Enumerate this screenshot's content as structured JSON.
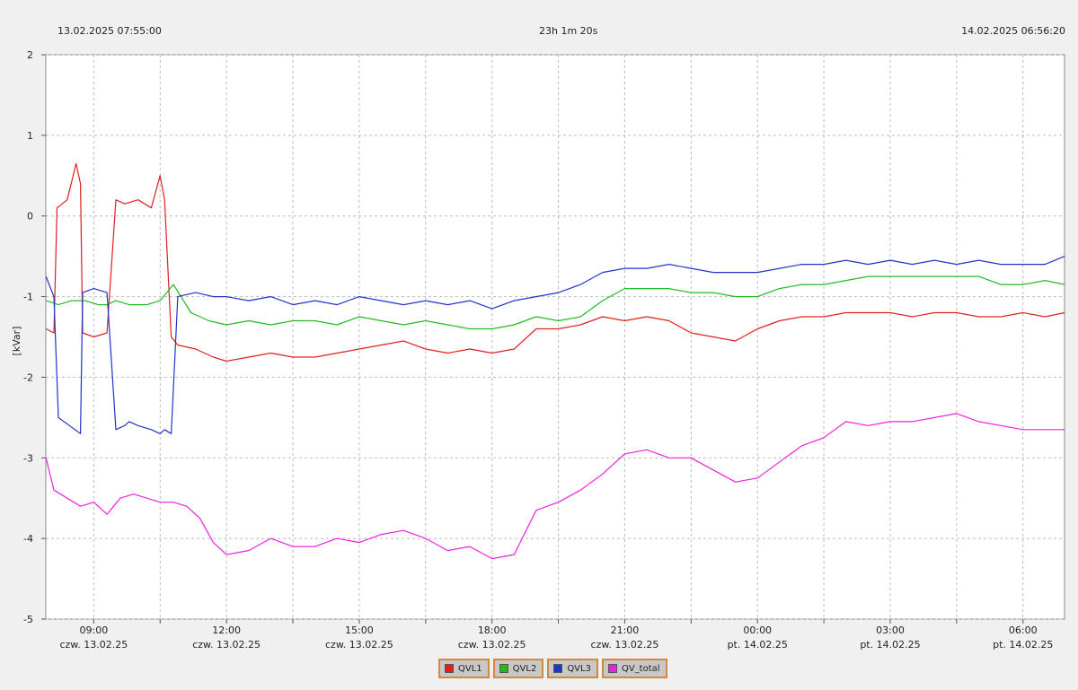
{
  "header": {
    "start_time": "13.02.2025 07:55:00",
    "duration": "23h 1m 20s",
    "end_time": "14.02.2025 06:56:20"
  },
  "chart_data": {
    "type": "line",
    "ylabel": "[kVar]",
    "ylim": [
      -5,
      2
    ],
    "xlim": [
      7.9167,
      30.9389
    ],
    "x_unit": "hours from 00:00 on 13.02.2025",
    "grid": true,
    "yticks": [
      "2",
      "1",
      "0",
      "-1",
      "-2",
      "-3",
      "-4",
      "-5"
    ],
    "xticks": [
      {
        "time": "09:00",
        "date": "czw. 13.02.25",
        "hour": 9
      },
      {
        "time": "12:00",
        "date": "czw. 13.02.25",
        "hour": 12
      },
      {
        "time": "15:00",
        "date": "czw. 13.02.25",
        "hour": 15
      },
      {
        "time": "18:00",
        "date": "czw. 13.02.25",
        "hour": 18
      },
      {
        "time": "21:00",
        "date": "czw. 13.02.25",
        "hour": 21
      },
      {
        "time": "00:00",
        "date": "pt. 14.02.25",
        "hour": 24
      },
      {
        "time": "03:00",
        "date": "pt. 14.02.25",
        "hour": 27
      },
      {
        "time": "06:00",
        "date": "pt. 14.02.25",
        "hour": 30
      }
    ],
    "legend_position": "bottom-center",
    "series": [
      {
        "name": "QVL1",
        "color": "#e02020",
        "x": [
          7.92,
          8.1,
          8.17,
          8.4,
          8.6,
          8.7,
          8.75,
          9.0,
          9.3,
          9.5,
          9.7,
          10.0,
          10.3,
          10.5,
          10.6,
          10.75,
          10.9,
          11.3,
          11.7,
          12.0,
          12.5,
          13.0,
          13.5,
          14.0,
          14.5,
          15.0,
          15.5,
          16.0,
          16.5,
          17.0,
          17.5,
          18.0,
          18.5,
          19.0,
          19.5,
          20.0,
          20.5,
          21.0,
          21.5,
          22.0,
          22.5,
          23.0,
          23.5,
          24.0,
          24.5,
          25.0,
          25.5,
          26.0,
          26.5,
          27.0,
          27.5,
          28.0,
          28.5,
          29.0,
          29.5,
          30.0,
          30.5,
          30.94
        ],
        "y": [
          -1.4,
          -1.45,
          0.1,
          0.2,
          0.65,
          0.4,
          -1.45,
          -1.5,
          -1.45,
          0.2,
          0.15,
          0.2,
          0.1,
          0.5,
          0.2,
          -1.5,
          -1.6,
          -1.65,
          -1.75,
          -1.8,
          -1.75,
          -1.7,
          -1.75,
          -1.75,
          -1.7,
          -1.65,
          -1.6,
          -1.55,
          -1.65,
          -1.7,
          -1.65,
          -1.7,
          -1.65,
          -1.4,
          -1.4,
          -1.35,
          -1.25,
          -1.3,
          -1.25,
          -1.3,
          -1.45,
          -1.5,
          -1.55,
          -1.4,
          -1.3,
          -1.25,
          -1.25,
          -1.2,
          -1.2,
          -1.2,
          -1.25,
          -1.2,
          -1.2,
          -1.25,
          -1.25,
          -1.2,
          -1.25,
          -1.2
        ]
      },
      {
        "name": "QVL2",
        "color": "#22bb22",
        "x": [
          7.92,
          8.2,
          8.5,
          8.8,
          9.1,
          9.3,
          9.5,
          9.8,
          10.2,
          10.5,
          10.8,
          11.2,
          11.6,
          12.0,
          12.5,
          13.0,
          13.5,
          14.0,
          14.5,
          15.0,
          15.5,
          16.0,
          16.5,
          17.0,
          17.5,
          18.0,
          18.5,
          19.0,
          19.5,
          20.0,
          20.5,
          21.0,
          21.5,
          22.0,
          22.5,
          23.0,
          23.5,
          24.0,
          24.5,
          25.0,
          25.5,
          26.0,
          26.5,
          27.0,
          27.5,
          28.0,
          28.5,
          29.0,
          29.5,
          30.0,
          30.5,
          30.94
        ],
        "y": [
          -1.05,
          -1.1,
          -1.05,
          -1.05,
          -1.1,
          -1.1,
          -1.05,
          -1.1,
          -1.1,
          -1.05,
          -0.85,
          -1.2,
          -1.3,
          -1.35,
          -1.3,
          -1.35,
          -1.3,
          -1.3,
          -1.35,
          -1.25,
          -1.3,
          -1.35,
          -1.3,
          -1.35,
          -1.4,
          -1.4,
          -1.35,
          -1.25,
          -1.3,
          -1.25,
          -1.05,
          -0.9,
          -0.9,
          -0.9,
          -0.95,
          -0.95,
          -1.0,
          -1.0,
          -0.9,
          -0.85,
          -0.85,
          -0.8,
          -0.75,
          -0.75,
          -0.75,
          -0.75,
          -0.75,
          -0.75,
          -0.85,
          -0.85,
          -0.8,
          -0.85
        ]
      },
      {
        "name": "QVL3",
        "color": "#2233cc",
        "x": [
          7.92,
          8.1,
          8.2,
          8.45,
          8.7,
          8.75,
          9.0,
          9.3,
          9.5,
          9.7,
          9.8,
          10.0,
          10.3,
          10.5,
          10.6,
          10.75,
          10.9,
          11.3,
          11.7,
          12.0,
          12.5,
          13.0,
          13.5,
          14.0,
          14.5,
          15.0,
          15.5,
          16.0,
          16.5,
          17.0,
          17.5,
          18.0,
          18.5,
          19.0,
          19.5,
          20.0,
          20.5,
          21.0,
          21.5,
          22.0,
          22.5,
          23.0,
          23.5,
          24.0,
          24.5,
          25.0,
          25.5,
          26.0,
          26.5,
          27.0,
          27.5,
          28.0,
          28.5,
          29.0,
          29.5,
          30.0,
          30.5,
          30.94
        ],
        "y": [
          -0.75,
          -1.0,
          -2.5,
          -2.6,
          -2.7,
          -0.95,
          -0.9,
          -0.95,
          -2.65,
          -2.6,
          -2.55,
          -2.6,
          -2.65,
          -2.7,
          -2.65,
          -2.7,
          -1.0,
          -0.95,
          -1.0,
          -1.0,
          -1.05,
          -1.0,
          -1.1,
          -1.05,
          -1.1,
          -1.0,
          -1.05,
          -1.1,
          -1.05,
          -1.1,
          -1.05,
          -1.15,
          -1.05,
          -1.0,
          -0.95,
          -0.85,
          -0.7,
          -0.65,
          -0.65,
          -0.6,
          -0.65,
          -0.7,
          -0.7,
          -0.7,
          -0.65,
          -0.6,
          -0.6,
          -0.55,
          -0.6,
          -0.55,
          -0.6,
          -0.55,
          -0.6,
          -0.55,
          -0.6,
          -0.6,
          -0.6,
          -0.5
        ]
      },
      {
        "name": "QV_total",
        "color": "#ee22dd",
        "x": [
          7.92,
          8.1,
          8.4,
          8.7,
          9.0,
          9.3,
          9.6,
          9.9,
          10.2,
          10.5,
          10.8,
          11.1,
          11.4,
          11.7,
          12.0,
          12.5,
          13.0,
          13.5,
          14.0,
          14.5,
          15.0,
          15.5,
          16.0,
          16.5,
          17.0,
          17.5,
          18.0,
          18.5,
          19.0,
          19.5,
          20.0,
          20.5,
          21.0,
          21.5,
          22.0,
          22.5,
          23.0,
          23.5,
          24.0,
          24.5,
          25.0,
          25.5,
          26.0,
          26.5,
          27.0,
          27.5,
          28.0,
          28.5,
          29.0,
          29.5,
          30.0,
          30.5,
          30.94
        ],
        "y": [
          -3.0,
          -3.4,
          -3.5,
          -3.6,
          -3.55,
          -3.7,
          -3.5,
          -3.45,
          -3.5,
          -3.55,
          -3.55,
          -3.6,
          -3.75,
          -4.05,
          -4.2,
          -4.15,
          -4.0,
          -4.1,
          -4.1,
          -4.0,
          -4.05,
          -3.95,
          -3.9,
          -4.0,
          -4.15,
          -4.1,
          -4.25,
          -4.2,
          -3.65,
          -3.55,
          -3.4,
          -3.2,
          -2.95,
          -2.9,
          -3.0,
          -3.0,
          -3.15,
          -3.3,
          -3.25,
          -3.05,
          -2.85,
          -2.75,
          -2.55,
          -2.6,
          -2.55,
          -2.55,
          -2.5,
          -2.45,
          -2.55,
          -2.6,
          -2.65,
          -2.65,
          -2.65
        ]
      }
    ],
    "legend": [
      "QVL1",
      "QVL2",
      "QVL3",
      "QV_total"
    ]
  }
}
